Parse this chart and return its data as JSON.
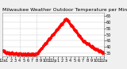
{
  "title": "Milwaukee Weather Outdoor Temperature per Minute (24 Hours)",
  "line_color": "#ff0000",
  "bg_color": "#f0f0f0",
  "plot_bg": "#ffffff",
  "grid_color": "#cccccc",
  "ylim": [
    32,
    68
  ],
  "yticks": [
    35,
    40,
    45,
    50,
    55,
    60,
    65
  ],
  "vlines": [
    240,
    480
  ],
  "title_fontsize": 4.5,
  "tick_fontsize": 3.5,
  "markersize": 0.7,
  "xtick_positions": [
    0,
    60,
    120,
    180,
    240,
    300,
    360,
    420,
    480,
    540,
    600,
    660,
    720,
    780,
    840,
    900,
    960,
    1020,
    1080,
    1140,
    1200,
    1260,
    1320,
    1380,
    1439
  ],
  "xtick_labels": [
    "12a",
    "1",
    "2",
    "3",
    "4",
    "5",
    "6",
    "7",
    "8",
    "9",
    "10",
    "11",
    "12p",
    "1",
    "2",
    "3",
    "4",
    "5",
    "6",
    "7",
    "8",
    "9",
    "10",
    "11",
    "12a"
  ]
}
